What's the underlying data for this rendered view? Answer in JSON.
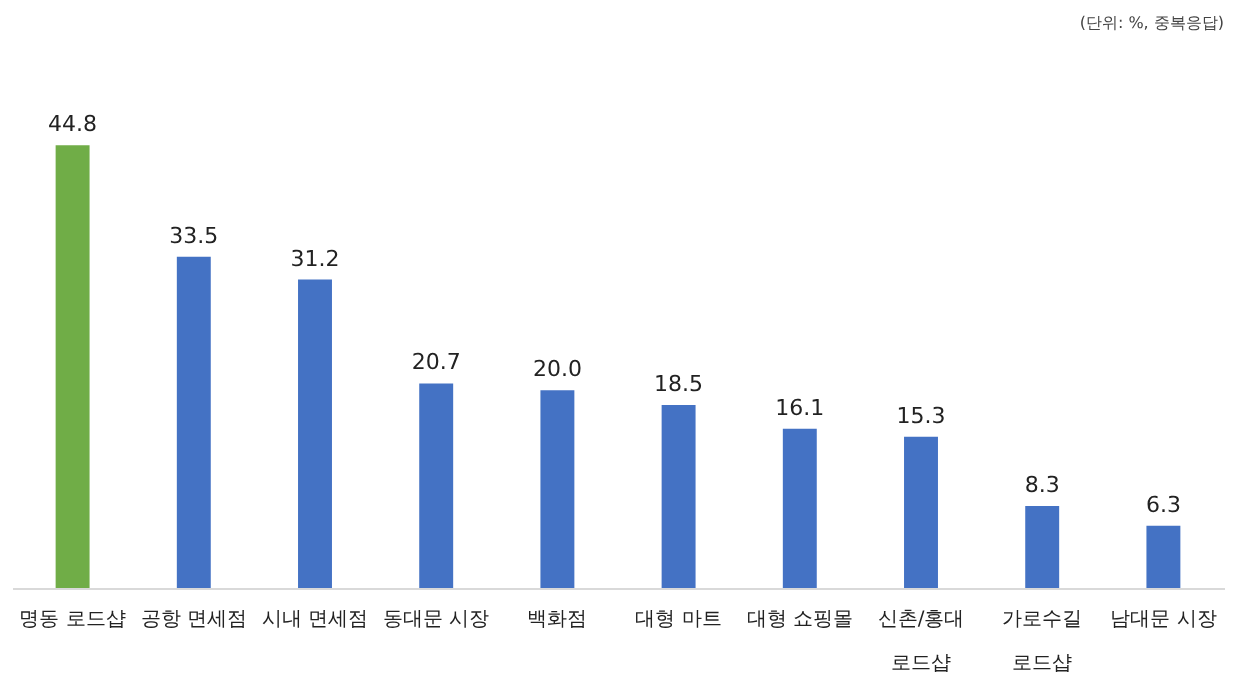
{
  "chart_data": {
    "type": "bar",
    "categories": [
      "명동 로드샵",
      "공항 면세점",
      "시내 면세점",
      "동대문 시장",
      "백화점",
      "대형 마트",
      "대형 쇼핑몰",
      "신촌/홍대\n로드샵",
      "가로수길\n로드샵",
      "남대문 시장"
    ],
    "values": [
      44.8,
      33.5,
      31.2,
      20.7,
      20.0,
      18.5,
      16.1,
      15.3,
      8.3,
      6.3
    ],
    "colors": [
      "#70ad47",
      "#4472c4",
      "#4472c4",
      "#4472c4",
      "#4472c4",
      "#4472c4",
      "#4472c4",
      "#4472c4",
      "#4472c4",
      "#4472c4"
    ],
    "value_labels": [
      "44.8",
      "33.5",
      "31.2",
      "20.7",
      "20.0",
      "18.5",
      "16.1",
      "15.3",
      "8.3",
      "6.3"
    ],
    "annotations": [
      "(단위: %, 중복응답)"
    ]
  }
}
